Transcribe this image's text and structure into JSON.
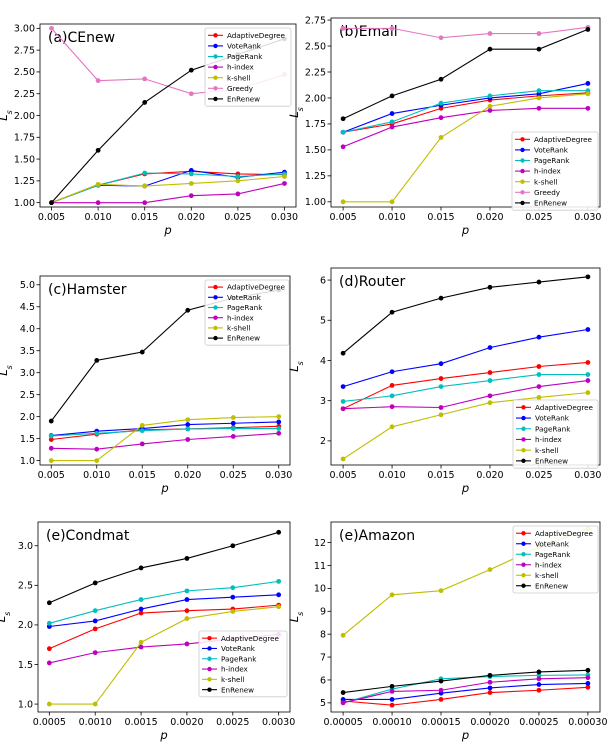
{
  "colors": {
    "AdaptiveDegree": "#ff0000",
    "VoteRank": "#0000ff",
    "PageRank": "#00bfbf",
    "h-index": "#bf00bf",
    "k-shell": "#bfbf00",
    "Greedy": "#e377c2",
    "EnRenew": "#000000"
  },
  "chart_data": [
    {
      "type": "line",
      "title": "(a)CEnew",
      "xlabel": "p",
      "ylabel": "L_s",
      "x": [
        0.005,
        0.01,
        0.015,
        0.02,
        0.025,
        0.03
      ],
      "xtick_labels": [
        "0.005",
        "0.010",
        "0.015",
        "0.020",
        "0.025",
        "0.030"
      ],
      "ylim": [
        0.95,
        3.05
      ],
      "yticks": [
        1.0,
        1.25,
        1.5,
        1.75,
        2.0,
        2.25,
        2.5,
        2.75,
        3.0
      ],
      "ytick_labels": [
        "1.00",
        "1.25",
        "1.50",
        "1.75",
        "2.00",
        "2.25",
        "2.50",
        "2.75",
        "3.00"
      ],
      "legend": "top-right",
      "series": [
        {
          "name": "AdaptiveDegree",
          "values": [
            1.0,
            1.2,
            1.33,
            1.36,
            1.33,
            1.32
          ]
        },
        {
          "name": "VoteRank",
          "values": [
            1.0,
            1.2,
            1.19,
            1.37,
            1.29,
            1.35
          ]
        },
        {
          "name": "PageRank",
          "values": [
            1.0,
            1.2,
            1.34,
            1.33,
            1.3,
            1.33
          ]
        },
        {
          "name": "h-index",
          "values": [
            1.0,
            1.0,
            1.0,
            1.08,
            1.1,
            1.22
          ]
        },
        {
          "name": "k-shell",
          "values": [
            1.0,
            1.21,
            1.19,
            1.22,
            1.25,
            1.3
          ]
        },
        {
          "name": "Greedy",
          "values": [
            3.0,
            2.4,
            2.42,
            2.25,
            2.3,
            2.47
          ]
        },
        {
          "name": "EnRenew",
          "values": [
            1.0,
            1.6,
            2.15,
            2.52,
            2.7,
            2.88
          ]
        }
      ]
    },
    {
      "type": "line",
      "title": "(b)Email",
      "xlabel": "p",
      "ylabel": "L_s",
      "x": [
        0.005,
        0.01,
        0.015,
        0.02,
        0.025,
        0.03
      ],
      "xtick_labels": [
        "0.005",
        "0.010",
        "0.015",
        "0.020",
        "0.025",
        "0.030"
      ],
      "ylim": [
        0.95,
        2.77
      ],
      "yticks": [
        1.0,
        1.25,
        1.5,
        1.75,
        2.0,
        2.25,
        2.5,
        2.75
      ],
      "ytick_labels": [
        "1.00",
        "1.25",
        "1.50",
        "1.75",
        "2.00",
        "2.25",
        "2.50",
        "2.75"
      ],
      "legend": "right",
      "series": [
        {
          "name": "AdaptiveDegree",
          "values": [
            1.67,
            1.75,
            1.9,
            1.98,
            2.02,
            2.05
          ]
        },
        {
          "name": "VoteRank",
          "values": [
            1.67,
            1.85,
            1.93,
            2.0,
            2.04,
            2.14
          ]
        },
        {
          "name": "PageRank",
          "values": [
            1.67,
            1.77,
            1.95,
            2.02,
            2.07,
            2.07
          ]
        },
        {
          "name": "h-index",
          "values": [
            1.53,
            1.72,
            1.81,
            1.88,
            1.9,
            1.9
          ]
        },
        {
          "name": "k-shell",
          "values": [
            1.0,
            1.0,
            1.62,
            1.92,
            2.0,
            2.04
          ]
        },
        {
          "name": "Greedy",
          "values": [
            2.67,
            2.67,
            2.58,
            2.62,
            2.62,
            2.68
          ]
        },
        {
          "name": "EnRenew",
          "values": [
            1.8,
            2.02,
            2.18,
            2.47,
            2.47,
            2.66
          ]
        }
      ]
    },
    {
      "type": "line",
      "title": "(c)Hamster",
      "xlabel": "p",
      "ylabel": "L_s",
      "x": [
        0.005,
        0.01,
        0.015,
        0.02,
        0.025,
        0.03
      ],
      "xtick_labels": [
        "0.005",
        "0.010",
        "0.015",
        "0.020",
        "0.025",
        "0.030"
      ],
      "ylim": [
        0.9,
        5.2
      ],
      "yticks": [
        1.0,
        1.5,
        2.0,
        2.5,
        3.0,
        3.5,
        4.0,
        4.5,
        5.0
      ],
      "ytick_labels": [
        "1.0",
        "1.5",
        "2.0",
        "2.5",
        "3.0",
        "3.5",
        "4.0",
        "4.5",
        "5.0"
      ],
      "legend": "top-right",
      "series": [
        {
          "name": "AdaptiveDegree",
          "values": [
            1.48,
            1.6,
            1.7,
            1.72,
            1.75,
            1.78
          ]
        },
        {
          "name": "VoteRank",
          "values": [
            1.57,
            1.67,
            1.73,
            1.82,
            1.85,
            1.88
          ]
        },
        {
          "name": "PageRank",
          "values": [
            1.56,
            1.62,
            1.68,
            1.72,
            1.73,
            1.73
          ]
        },
        {
          "name": "h-index",
          "values": [
            1.28,
            1.26,
            1.38,
            1.48,
            1.55,
            1.62
          ]
        },
        {
          "name": "k-shell",
          "values": [
            1.0,
            1.0,
            1.8,
            1.93,
            1.98,
            2.0
          ]
        },
        {
          "name": "EnRenew",
          "values": [
            1.9,
            3.28,
            3.47,
            4.42,
            4.7,
            4.88
          ]
        }
      ]
    },
    {
      "type": "line",
      "title": "(d)Router",
      "xlabel": "p",
      "ylabel": "L_s",
      "x": [
        0.005,
        0.01,
        0.015,
        0.02,
        0.025,
        0.03
      ],
      "xtick_labels": [
        "0.005",
        "0.010",
        "0.015",
        "0.020",
        "0.025",
        "0.030"
      ],
      "ylim": [
        1.4,
        6.3
      ],
      "yticks": [
        2,
        3,
        4,
        5,
        6
      ],
      "ytick_labels": [
        "2",
        "3",
        "4",
        "5",
        "6"
      ],
      "legend": "bottom-right",
      "series": [
        {
          "name": "AdaptiveDegree",
          "values": [
            2.8,
            3.38,
            3.55,
            3.7,
            3.85,
            3.95
          ]
        },
        {
          "name": "VoteRank",
          "values": [
            3.35,
            3.72,
            3.92,
            4.32,
            4.58,
            4.77
          ]
        },
        {
          "name": "PageRank",
          "values": [
            2.98,
            3.12,
            3.35,
            3.5,
            3.65,
            3.65
          ]
        },
        {
          "name": "h-index",
          "values": [
            2.8,
            2.85,
            2.83,
            3.12,
            3.35,
            3.5
          ]
        },
        {
          "name": "k-shell",
          "values": [
            1.55,
            2.35,
            2.65,
            2.95,
            3.08,
            3.2
          ]
        },
        {
          "name": "EnRenew",
          "values": [
            4.18,
            5.2,
            5.55,
            5.82,
            5.95,
            6.08
          ]
        }
      ]
    },
    {
      "type": "line",
      "title": "(e)Condmat",
      "xlabel": "p",
      "ylabel": "L_s",
      "x": [
        0.0005,
        0.001,
        0.0015,
        0.002,
        0.0025,
        0.003
      ],
      "xtick_labels": [
        "0.0005",
        "0.0010",
        "0.0015",
        "0.0020",
        "0.0025",
        "0.0030"
      ],
      "ylim": [
        0.9,
        3.3
      ],
      "yticks": [
        1.0,
        1.5,
        2.0,
        2.5,
        3.0
      ],
      "ytick_labels": [
        "1.0",
        "1.5",
        "2.0",
        "2.5",
        "3.0"
      ],
      "legend": "bottom-right",
      "series": [
        {
          "name": "AdaptiveDegree",
          "values": [
            1.7,
            1.95,
            2.15,
            2.18,
            2.2,
            2.25
          ]
        },
        {
          "name": "VoteRank",
          "values": [
            1.98,
            2.05,
            2.2,
            2.32,
            2.35,
            2.38
          ]
        },
        {
          "name": "PageRank",
          "values": [
            2.02,
            2.18,
            2.32,
            2.43,
            2.47,
            2.55
          ]
        },
        {
          "name": "h-index",
          "values": [
            1.52,
            1.65,
            1.72,
            1.76,
            1.82,
            1.88
          ]
        },
        {
          "name": "k-shell",
          "values": [
            1.0,
            1.0,
            1.78,
            2.08,
            2.17,
            2.23
          ]
        },
        {
          "name": "EnRenew",
          "values": [
            2.28,
            2.53,
            2.72,
            2.84,
            3.0,
            3.17
          ]
        }
      ]
    },
    {
      "type": "line",
      "title": "(e)Amazon",
      "xlabel": "p",
      "ylabel": "L_s",
      "x": [
        5e-05,
        0.0001,
        0.00015,
        0.0002,
        0.00025,
        0.0003
      ],
      "xtick_labels": [
        "0.00005",
        "0.00010",
        "0.00015",
        "0.00020",
        "0.00025",
        "0.00030"
      ],
      "ylim": [
        4.6,
        12.9
      ],
      "yticks": [
        5,
        6,
        7,
        8,
        9,
        10,
        11,
        12
      ],
      "ytick_labels": [
        "5",
        "6",
        "7",
        "8",
        "9",
        "10",
        "11",
        "12"
      ],
      "legend": "top-right",
      "series": [
        {
          "name": "AdaptiveDegree",
          "values": [
            5.08,
            4.9,
            5.15,
            5.45,
            5.55,
            5.68
          ]
        },
        {
          "name": "VoteRank",
          "values": [
            5.15,
            5.15,
            5.42,
            5.65,
            5.8,
            5.85
          ]
        },
        {
          "name": "PageRank",
          "values": [
            5.0,
            5.6,
            6.05,
            6.15,
            6.2,
            6.22
          ]
        },
        {
          "name": "h-index",
          "values": [
            5.0,
            5.5,
            5.55,
            5.9,
            6.05,
            6.1
          ]
        },
        {
          "name": "k-shell",
          "values": [
            7.95,
            9.72,
            9.9,
            10.82,
            11.8,
            12.6
          ]
        },
        {
          "name": "EnRenew",
          "values": [
            5.45,
            5.72,
            5.95,
            6.2,
            6.35,
            6.42
          ]
        }
      ]
    }
  ]
}
